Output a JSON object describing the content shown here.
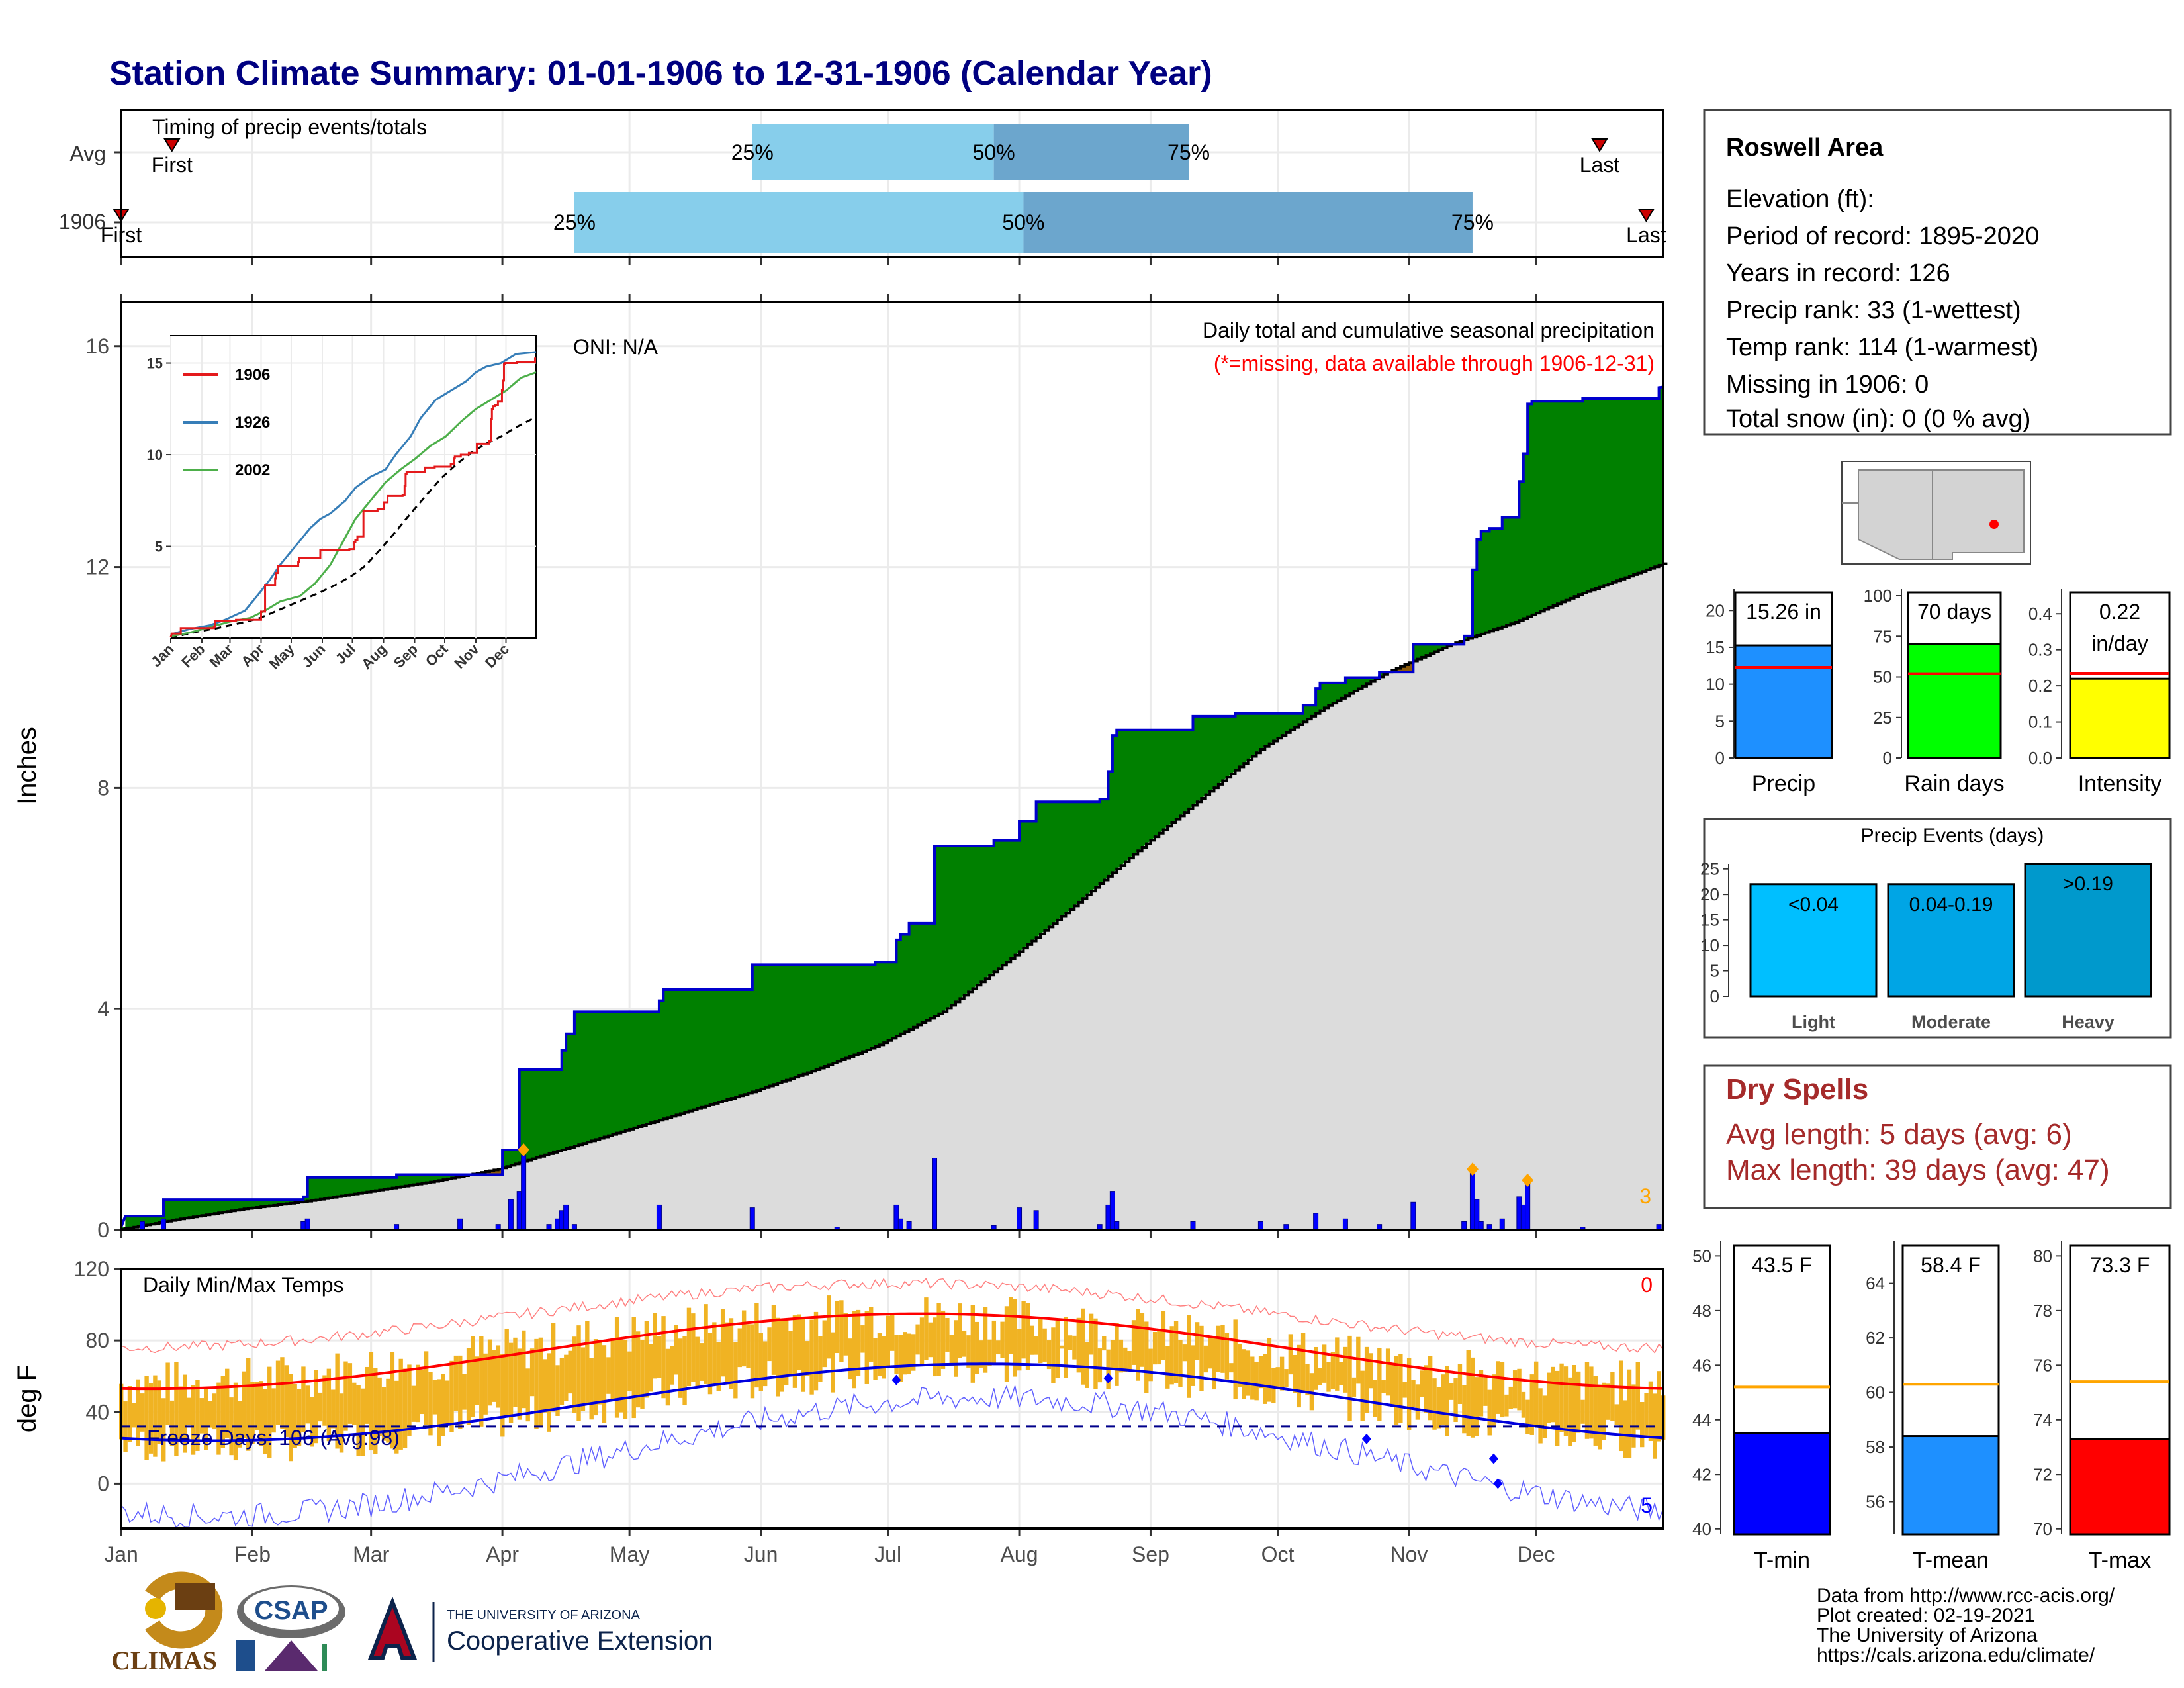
{
  "title": "Station Climate Summary: 01-01-1906 to 12-31-1906 (Calendar Year)",
  "timing": {
    "title": "Timing of precip events/totals",
    "rows": [
      {
        "label": "Avg",
        "first_label": "First",
        "last_label": "Last",
        "first_doy": 13,
        "last_doy": 350,
        "q25_doy": 150,
        "q50_doy": 207,
        "q75_doy": 253,
        "q25_label": "25%",
        "q50_label": "50%",
        "q75_label": "75%"
      },
      {
        "label": "1906",
        "first_label": "First",
        "last_label": "Last",
        "first_doy": 1,
        "last_doy": 361,
        "q25_doy": 108,
        "q50_doy": 214,
        "q75_doy": 320,
        "q25_label": "25%",
        "q50_label": "50%",
        "q75_label": "75%"
      }
    ]
  },
  "precip": {
    "ylabel": "Inches",
    "ylim": [
      0,
      16.8
    ],
    "yticks": [
      "0",
      "4",
      "8",
      "12",
      "16"
    ],
    "ytick_values": [
      0,
      4,
      8,
      12,
      16
    ],
    "title_line1": "Daily total and cumulative seasonal precipitation",
    "title_line2": "(*=missing, data available through 1906-12-31)",
    "oni": "ONI: N/A",
    "corner_count": "3",
    "cum_1906": [
      [
        1,
        0.05
      ],
      [
        2,
        0.25
      ],
      [
        11,
        0.25
      ],
      [
        11,
        0.55
      ],
      [
        44,
        0.55
      ],
      [
        44,
        0.6
      ],
      [
        45,
        0.6
      ],
      [
        45,
        0.95
      ],
      [
        66,
        0.95
      ],
      [
        66,
        1.0
      ],
      [
        91,
        1.0
      ],
      [
        91,
        1.45
      ],
      [
        95,
        1.45
      ],
      [
        95,
        2.9
      ],
      [
        105,
        2.9
      ],
      [
        105,
        3.25
      ],
      [
        106,
        3.25
      ],
      [
        106,
        3.55
      ],
      [
        108,
        3.55
      ],
      [
        108,
        3.95
      ],
      [
        128,
        3.95
      ],
      [
        128,
        4.15
      ],
      [
        129,
        4.15
      ],
      [
        129,
        4.35
      ],
      [
        150,
        4.35
      ],
      [
        150,
        4.8
      ],
      [
        179,
        4.8
      ],
      [
        179,
        4.85
      ],
      [
        184,
        4.85
      ],
      [
        184,
        5.25
      ],
      [
        185,
        5.25
      ],
      [
        185,
        5.35
      ],
      [
        187,
        5.35
      ],
      [
        187,
        5.55
      ],
      [
        193,
        5.55
      ],
      [
        193,
        6.95
      ],
      [
        207,
        6.95
      ],
      [
        207,
        7.05
      ],
      [
        213,
        7.05
      ],
      [
        213,
        7.4
      ],
      [
        217,
        7.4
      ],
      [
        217,
        7.75
      ],
      [
        232,
        7.75
      ],
      [
        232,
        7.8
      ],
      [
        234,
        7.8
      ],
      [
        234,
        8.3
      ],
      [
        235,
        8.3
      ],
      [
        235,
        8.95
      ],
      [
        236,
        8.95
      ],
      [
        236,
        9.05
      ],
      [
        254,
        9.05
      ],
      [
        254,
        9.3
      ],
      [
        264,
        9.3
      ],
      [
        264,
        9.35
      ],
      [
        280,
        9.35
      ],
      [
        280,
        9.5
      ],
      [
        283,
        9.5
      ],
      [
        283,
        9.8
      ],
      [
        284,
        9.8
      ],
      [
        284,
        9.9
      ],
      [
        290,
        9.9
      ],
      [
        290,
        10.0
      ],
      [
        298,
        10.0
      ],
      [
        298,
        10.1
      ],
      [
        306,
        10.1
      ],
      [
        306,
        10.6
      ],
      [
        318,
        10.6
      ],
      [
        318,
        10.75
      ],
      [
        320,
        10.75
      ],
      [
        320,
        11.95
      ],
      [
        321,
        11.95
      ],
      [
        321,
        12.5
      ],
      [
        322,
        12.5
      ],
      [
        322,
        12.65
      ],
      [
        324,
        12.65
      ],
      [
        324,
        12.7
      ],
      [
        327,
        12.7
      ],
      [
        327,
        12.9
      ],
      [
        331,
        12.9
      ],
      [
        331,
        13.55
      ],
      [
        332,
        13.55
      ],
      [
        332,
        14.05
      ],
      [
        333,
        14.05
      ],
      [
        333,
        14.95
      ],
      [
        334,
        14.95
      ],
      [
        334,
        15.0
      ],
      [
        346,
        15.0
      ],
      [
        346,
        15.05
      ],
      [
        364,
        15.05
      ],
      [
        364,
        15.25
      ],
      [
        365,
        15.26
      ]
    ],
    "cum_avg": [
      [
        1,
        0.01
      ],
      [
        15,
        0.2
      ],
      [
        30,
        0.38
      ],
      [
        45,
        0.52
      ],
      [
        60,
        0.7
      ],
      [
        75,
        0.88
      ],
      [
        90,
        1.1
      ],
      [
        105,
        1.45
      ],
      [
        120,
        1.8
      ],
      [
        135,
        2.15
      ],
      [
        150,
        2.5
      ],
      [
        165,
        2.9
      ],
      [
        180,
        3.35
      ],
      [
        195,
        3.95
      ],
      [
        210,
        4.85
      ],
      [
        225,
        5.8
      ],
      [
        240,
        6.8
      ],
      [
        255,
        7.75
      ],
      [
        270,
        8.7
      ],
      [
        285,
        9.45
      ],
      [
        300,
        10.1
      ],
      [
        315,
        10.6
      ],
      [
        330,
        11.0
      ],
      [
        345,
        11.5
      ],
      [
        365,
        12.06
      ]
    ],
    "daily": [
      [
        6,
        0.15
      ],
      [
        11,
        0.2
      ],
      [
        44,
        0.15
      ],
      [
        45,
        0.2
      ],
      [
        66,
        0.1
      ],
      [
        81,
        0.2
      ],
      [
        90,
        0.1
      ],
      [
        93,
        0.55
      ],
      [
        95,
        0.7
      ],
      [
        96,
        1.35
      ],
      [
        102,
        0.1
      ],
      [
        104,
        0.2
      ],
      [
        105,
        0.35
      ],
      [
        106,
        0.45
      ],
      [
        108,
        0.1
      ],
      [
        128,
        0.45
      ],
      [
        150,
        0.4
      ],
      [
        170,
        0.05
      ],
      [
        184,
        0.45
      ],
      [
        185,
        0.2
      ],
      [
        187,
        0.15
      ],
      [
        193,
        1.3
      ],
      [
        207,
        0.08
      ],
      [
        213,
        0.4
      ],
      [
        217,
        0.35
      ],
      [
        232,
        0.1
      ],
      [
        234,
        0.45
      ],
      [
        235,
        0.7
      ],
      [
        236,
        0.15
      ],
      [
        254,
        0.15
      ],
      [
        270,
        0.15
      ],
      [
        276,
        0.1
      ],
      [
        283,
        0.3
      ],
      [
        290,
        0.2
      ],
      [
        298,
        0.1
      ],
      [
        306,
        0.5
      ],
      [
        318,
        0.15
      ],
      [
        320,
        1.05
      ],
      [
        321,
        0.55
      ],
      [
        322,
        0.15
      ],
      [
        324,
        0.1
      ],
      [
        327,
        0.2
      ],
      [
        331,
        0.6
      ],
      [
        332,
        0.45
      ],
      [
        333,
        0.85
      ],
      [
        346,
        0.05
      ],
      [
        364,
        0.1
      ]
    ],
    "diamonds": [
      [
        96,
        1.45
      ],
      [
        320,
        1.1
      ],
      [
        333,
        0.9
      ]
    ],
    "colors": {
      "above": "#008000",
      "below": "#8B5A0B",
      "normal": "#DCDCDC",
      "bars": "#0000FF"
    }
  },
  "inset": {
    "years": [
      {
        "name": "1906",
        "color": "#E41A1C"
      },
      {
        "name": "1926",
        "color": "#377EB8"
      },
      {
        "name": "2002",
        "color": "#4DAF4A"
      }
    ],
    "yticks": [
      "5",
      "10",
      "15"
    ],
    "ytick_values": [
      5,
      10,
      15
    ],
    "ylim": [
      0,
      16.5
    ],
    "series_1926": [
      [
        1,
        0.2
      ],
      [
        20,
        0.5
      ],
      [
        40,
        0.7
      ],
      [
        55,
        1.0
      ],
      [
        75,
        1.5
      ],
      [
        90,
        2.5
      ],
      [
        100,
        3.2
      ],
      [
        110,
        4.0
      ],
      [
        125,
        5.0
      ],
      [
        140,
        6.0
      ],
      [
        150,
        6.5
      ],
      [
        160,
        6.8
      ],
      [
        175,
        7.5
      ],
      [
        185,
        8.2
      ],
      [
        200,
        8.8
      ],
      [
        215,
        9.2
      ],
      [
        225,
        10.0
      ],
      [
        240,
        11.0
      ],
      [
        250,
        12.0
      ],
      [
        265,
        13.0
      ],
      [
        280,
        13.5
      ],
      [
        295,
        14.0
      ],
      [
        305,
        14.5
      ],
      [
        315,
        14.8
      ],
      [
        330,
        15.0
      ],
      [
        345,
        15.5
      ],
      [
        365,
        15.6
      ]
    ],
    "series_2002": [
      [
        1,
        0.1
      ],
      [
        20,
        0.3
      ],
      [
        40,
        0.6
      ],
      [
        60,
        0.9
      ],
      [
        80,
        1.1
      ],
      [
        95,
        1.5
      ],
      [
        110,
        2.0
      ],
      [
        130,
        2.3
      ],
      [
        145,
        3.0
      ],
      [
        160,
        4.0
      ],
      [
        170,
        5.0
      ],
      [
        185,
        6.5
      ],
      [
        200,
        7.5
      ],
      [
        215,
        8.5
      ],
      [
        230,
        9.2
      ],
      [
        245,
        9.8
      ],
      [
        260,
        10.5
      ],
      [
        275,
        11.0
      ],
      [
        290,
        11.8
      ],
      [
        305,
        12.5
      ],
      [
        320,
        13.0
      ],
      [
        335,
        13.5
      ],
      [
        350,
        14.2
      ],
      [
        365,
        14.5
      ]
    ],
    "months": [
      "Jan",
      "Feb",
      "Mar",
      "Apr",
      "May",
      "Jun",
      "Jul",
      "Aug",
      "Sep",
      "Oct",
      "Nov",
      "Dec"
    ]
  },
  "station": {
    "name": "Roswell Area",
    "lines": [
      "Elevation (ft):",
      "Period of record: 1895-2020",
      "Years in record: 126",
      "Precip rank: 33 (1-wettest)",
      "Temp rank: 114 (1-warmest)",
      "Missing in 1906: 0",
      "Total snow (in): 0 (0 % avg)"
    ]
  },
  "summary_bars": [
    {
      "label": "Precip",
      "value": 15.26,
      "value_label": "15.26 in",
      "avg": 12.3,
      "ylim": [
        0,
        22
      ],
      "ticks": [
        0,
        5,
        10,
        15,
        20
      ],
      "tick_labels": [
        "0",
        "5",
        "10",
        "15",
        "20"
      ],
      "color": "#1E90FF"
    },
    {
      "label": "Rain days",
      "value": 70,
      "value_label": "70 days",
      "avg": 52,
      "ylim": [
        0,
        100
      ],
      "ticks": [
        0,
        25,
        50,
        75,
        100
      ],
      "tick_labels": [
        "0",
        "25",
        "50",
        "75",
        "100"
      ],
      "color": "#00FF00"
    },
    {
      "label": "Intensity",
      "value": 0.22,
      "value_label": "0.22",
      "value_label2": "in/day",
      "avg": 0.235,
      "ylim": [
        0,
        0.45
      ],
      "ticks": [
        0,
        0.1,
        0.2,
        0.3,
        0.4
      ],
      "tick_labels": [
        "0.0",
        "0.1",
        "0.2",
        "0.3",
        "0.4"
      ],
      "color": "#FFFF00"
    }
  ],
  "events": {
    "title": "Precip Events (days)",
    "ylim": [
      0,
      26
    ],
    "ticks": [
      0,
      5,
      10,
      15,
      20,
      25
    ],
    "tick_labels": [
      "0",
      "5",
      "10",
      "15",
      "20",
      "25"
    ],
    "bars": [
      {
        "label": "Light",
        "range": "<0.04",
        "value": 22,
        "color": "#00BFFF"
      },
      {
        "label": "Moderate",
        "range": "0.04-0.19",
        "value": 22,
        "color": "#00A5E5"
      },
      {
        "label": "Heavy",
        "range": ">0.19",
        "value": 26,
        "color": "#0099CC"
      }
    ]
  },
  "dry_spells": {
    "title": "Dry Spells",
    "lines": [
      "Avg length: 5 days (avg: 6)",
      "Max length: 39 days (avg: 47)"
    ]
  },
  "temps": {
    "ylabel": "deg F",
    "title": "Daily Min/Max Temps",
    "ylim": [
      -25,
      120
    ],
    "yticks": [
      "0",
      "40",
      "80",
      "120"
    ],
    "ytick_values": [
      0,
      40,
      80,
      120
    ],
    "freeze_text": "Freeze Days: 106 (Avg:98)",
    "freeze_line": 32,
    "count_hot": "0",
    "count_cold": "5",
    "diamonds": [
      [
        184,
        58
      ],
      [
        234,
        59
      ],
      [
        295,
        25
      ],
      [
        325,
        14
      ],
      [
        326,
        0
      ]
    ],
    "months": [
      "Jan",
      "Feb",
      "Mar",
      "Apr",
      "May",
      "Jun",
      "Jul",
      "Aug",
      "Sep",
      "Oct",
      "Nov",
      "Dec"
    ]
  },
  "temp_bars": [
    {
      "label": "T-min",
      "value": 43.5,
      "value_label": "43.5 F",
      "avg": 45.2,
      "ylim": [
        39.8,
        50.3
      ],
      "ticks": [
        40,
        42,
        44,
        46,
        48,
        50
      ],
      "tick_labels": [
        "40",
        "42",
        "44",
        "46",
        "48",
        "50"
      ],
      "color": "#0000FF"
    },
    {
      "label": "T-mean",
      "value": 58.4,
      "value_label": "58.4 F",
      "avg": 60.3,
      "ylim": [
        54.8,
        65.3
      ],
      "ticks": [
        56,
        58,
        60,
        62,
        64
      ],
      "tick_labels": [
        "56",
        "58",
        "60",
        "62",
        "64"
      ],
      "color": "#1E90FF"
    },
    {
      "label": "T-max",
      "value": 73.3,
      "value_label": "73.3 F",
      "avg": 75.4,
      "ylim": [
        69.8,
        80.3
      ],
      "ticks": [
        70,
        72,
        74,
        76,
        78,
        80
      ],
      "tick_labels": [
        "70",
        "72",
        "74",
        "76",
        "78",
        "80"
      ],
      "color": "#FF0000"
    }
  ],
  "footer": {
    "lines": [
      "Data from http://www.rcc-acis.org/",
      "Plot created: 02-19-2021",
      "The University of Arizona",
      "https://cals.arizona.edu/climate/"
    ],
    "logo_climas": "CLIMAS",
    "logo_csap": "CSAP",
    "uofa_small": "THE UNIVERSITY OF ARIZONA",
    "uofa_large": "Cooperative Extension"
  }
}
